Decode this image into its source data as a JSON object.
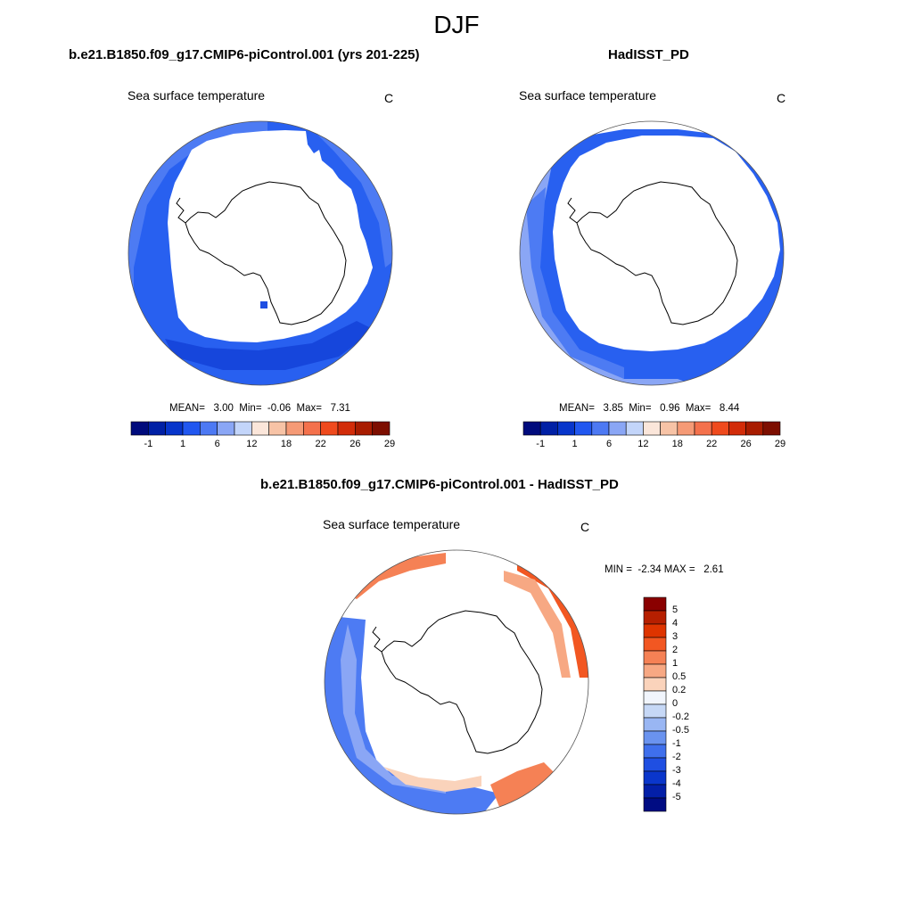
{
  "figure": {
    "title": "DJF"
  },
  "panels": [
    {
      "title": "b.e21.B1850.f09_g17.CMIP6-piControl.001 (yrs 201-225)",
      "left_label": "Sea surface temperature",
      "right_label": "C",
      "stats_text": "MEAN=   3.00  Min=  -0.06  Max=   7.31",
      "mean": 3.0,
      "min": -0.06,
      "max": 7.31
    },
    {
      "title": "HadISST_PD",
      "left_label": "Sea surface temperature",
      "right_label": "C",
      "stats_text": "MEAN=   3.85  Min=   0.96  Max=   8.44",
      "mean": 3.85,
      "min": 0.96,
      "max": 8.44
    },
    {
      "title": "b.e21.B1850.f09_g17.CMIP6-piControl.001 - HadISST_PD",
      "left_label": "Sea surface temperature",
      "right_label": "C",
      "stats_text": "MIN =  -2.34 MAX =   2.61",
      "min": -2.34,
      "max": 2.61
    }
  ],
  "sst_colorbar": {
    "colors": [
      "#000b7c",
      "#0020a5",
      "#0735cb",
      "#2157f0",
      "#4d79f3",
      "#8aa6f5",
      "#c3d5fa",
      "#fbe6da",
      "#f7c3a6",
      "#f59a76",
      "#f4714c",
      "#ef4a1d",
      "#d22c09",
      "#a81c00",
      "#7d0e00"
    ],
    "tick_labels": [
      "-1",
      "1",
      "6",
      "12",
      "18",
      "22",
      "26",
      "29"
    ]
  },
  "diff_colorbar": {
    "colors": [
      "#8a0000",
      "#b61f00",
      "#de3400",
      "#f25722",
      "#f58155",
      "#f7a883",
      "#fad3bb",
      "#f1f5fc",
      "#c6d8f6",
      "#99b6f3",
      "#6a93ef",
      "#3f6fec",
      "#1f4fe2",
      "#0a36cb",
      "#031fa8",
      "#000c83"
    ],
    "tick_labels": [
      "5",
      "4",
      "3",
      "2",
      "1",
      "0.5",
      "0.2",
      "0",
      "-0.2",
      "-0.5",
      "-1",
      "-2",
      "-3",
      "-4",
      "-5"
    ]
  }
}
